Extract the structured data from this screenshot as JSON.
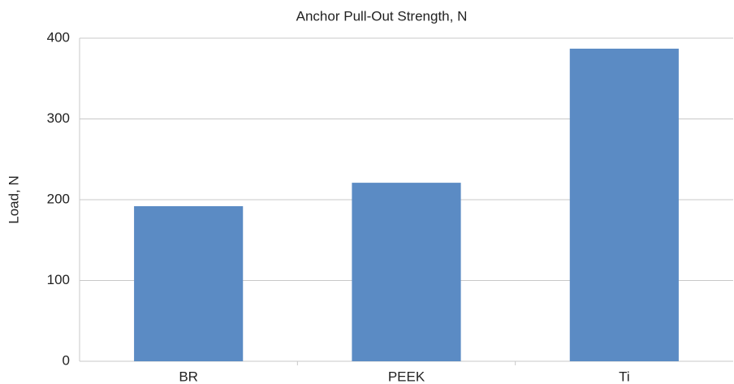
{
  "chart_data": {
    "type": "bar",
    "title": "Anchor Pull-Out Strength, N",
    "y_label": "Load, N",
    "categories": [
      "BR",
      "PEEK",
      "Ti"
    ],
    "values": [
      192,
      221,
      387
    ],
    "color": "#5b8bc4",
    "ylim": [
      0,
      400
    ],
    "yticks": [
      0,
      100,
      200,
      300,
      400
    ],
    "grid": true
  }
}
